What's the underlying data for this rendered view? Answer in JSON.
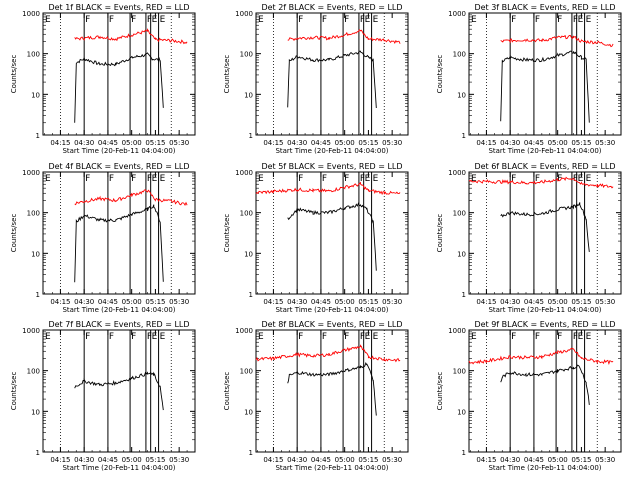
{
  "figure": {
    "ylabel": "Counts/sec",
    "xlabel": "Start Time (20-Feb-11 04:04:00)",
    "xticks": [
      "04:15",
      "04:30",
      "04:45",
      "05:00",
      "05:15",
      "05:30"
    ],
    "yticks": [
      "1",
      "10",
      "100",
      "1000"
    ],
    "colors": {
      "events": "#000000",
      "lld": "#ff0000",
      "axes": "#000000",
      "background": "#ffffff"
    }
  },
  "chart_data": [
    {
      "type": "line",
      "title": "Det 1f BLACK = Events, RED = LLD",
      "ylog": true,
      "ylim": [
        1,
        1000
      ],
      "markers": [
        "F",
        "F",
        "F",
        "F",
        "E",
        "E"
      ],
      "series": [
        {
          "name": "Events",
          "points": [
            [
              "04:24",
              2
            ],
            [
              "04:25",
              60
            ],
            [
              "04:30",
              75
            ],
            [
              "04:40",
              55
            ],
            [
              "04:50",
              55
            ],
            [
              "05:00",
              80
            ],
            [
              "05:10",
              95
            ],
            [
              "05:13",
              75
            ],
            [
              "05:18",
              70
            ],
            [
              "05:20",
              5
            ]
          ]
        },
        {
          "name": "LLD",
          "points": [
            [
              "04:24",
              230
            ],
            [
              "04:30",
              240
            ],
            [
              "04:40",
              260
            ],
            [
              "04:50",
              230
            ],
            [
              "05:00",
              290
            ],
            [
              "05:10",
              360
            ],
            [
              "05:15",
              220
            ],
            [
              "05:25",
              210
            ],
            [
              "05:35",
              190
            ]
          ]
        }
      ]
    },
    {
      "type": "line",
      "title": "Det 2f BLACK = Events, RED = LLD",
      "ylog": true,
      "ylim": [
        1,
        1000
      ],
      "markers": [
        "F",
        "F",
        "F",
        "F",
        "E",
        "E"
      ],
      "series": [
        {
          "name": "Events",
          "points": [
            [
              "04:24",
              5
            ],
            [
              "04:25",
              65
            ],
            [
              "04:30",
              85
            ],
            [
              "04:40",
              70
            ],
            [
              "04:50",
              70
            ],
            [
              "05:00",
              90
            ],
            [
              "05:10",
              110
            ],
            [
              "05:15",
              80
            ],
            [
              "05:18",
              70
            ],
            [
              "05:20",
              5
            ]
          ]
        },
        {
          "name": "LLD",
          "points": [
            [
              "04:24",
              220
            ],
            [
              "04:30",
              240
            ],
            [
              "04:40",
              250
            ],
            [
              "04:50",
              240
            ],
            [
              "05:00",
              290
            ],
            [
              "05:10",
              370
            ],
            [
              "05:15",
              230
            ],
            [
              "05:25",
              220
            ],
            [
              "05:35",
              190
            ]
          ]
        }
      ]
    },
    {
      "type": "line",
      "title": "Det 3f BLACK = Events, RED = LLD",
      "ylog": true,
      "ylim": [
        1,
        1000
      ],
      "markers": [
        "F",
        "F",
        "F",
        "F",
        "E",
        "E"
      ],
      "series": [
        {
          "name": "Events",
          "points": [
            [
              "04:24",
              2
            ],
            [
              "04:25",
              65
            ],
            [
              "04:30",
              80
            ],
            [
              "04:40",
              70
            ],
            [
              "04:50",
              70
            ],
            [
              "05:00",
              90
            ],
            [
              "05:10",
              110
            ],
            [
              "05:15",
              80
            ],
            [
              "05:18",
              70
            ],
            [
              "05:20",
              2
            ]
          ]
        },
        {
          "name": "LLD",
          "points": [
            [
              "04:24",
              200
            ],
            [
              "04:30",
              210
            ],
            [
              "04:40",
              220
            ],
            [
              "04:50",
              210
            ],
            [
              "05:00",
              250
            ],
            [
              "05:10",
              260
            ],
            [
              "05:15",
              200
            ],
            [
              "05:25",
              190
            ],
            [
              "05:35",
              160
            ]
          ]
        }
      ]
    },
    {
      "type": "line",
      "title": "Det 4f BLACK = Events, RED = LLD",
      "ylog": true,
      "ylim": [
        1,
        1000
      ],
      "markers": [
        "F",
        "F",
        "F",
        "F",
        "E",
        "E"
      ],
      "series": [
        {
          "name": "Events",
          "points": [
            [
              "04:24",
              2
            ],
            [
              "04:25",
              60
            ],
            [
              "04:30",
              85
            ],
            [
              "04:40",
              65
            ],
            [
              "04:50",
              65
            ],
            [
              "05:00",
              90
            ],
            [
              "05:10",
              120
            ],
            [
              "05:14",
              150
            ],
            [
              "05:18",
              60
            ],
            [
              "05:20",
              2
            ]
          ]
        },
        {
          "name": "LLD",
          "points": [
            [
              "04:24",
              170
            ],
            [
              "04:30",
              190
            ],
            [
              "04:40",
              220
            ],
            [
              "04:50",
              200
            ],
            [
              "05:00",
              270
            ],
            [
              "05:10",
              350
            ],
            [
              "05:15",
              210
            ],
            [
              "05:25",
              190
            ],
            [
              "05:35",
              160
            ]
          ]
        }
      ]
    },
    {
      "type": "line",
      "title": "Det 5f BLACK = Events, RED = LLD",
      "ylog": true,
      "ylim": [
        1,
        1000
      ],
      "markers": [
        "F",
        "F",
        "F",
        "F",
        "E",
        "E"
      ],
      "series": [
        {
          "name": "Events",
          "points": [
            [
              "04:24",
              70
            ],
            [
              "04:30",
              120
            ],
            [
              "04:40",
              100
            ],
            [
              "04:50",
              100
            ],
            [
              "05:00",
              130
            ],
            [
              "05:10",
              160
            ],
            [
              "05:14",
              120
            ],
            [
              "05:18",
              60
            ],
            [
              "05:20",
              4
            ]
          ]
        },
        {
          "name": "LLD",
          "points": [
            [
              "04:04",
              310
            ],
            [
              "04:15",
              330
            ],
            [
              "04:30",
              370
            ],
            [
              "04:40",
              350
            ],
            [
              "04:50",
              340
            ],
            [
              "05:00",
              420
            ],
            [
              "05:10",
              500
            ],
            [
              "05:15",
              350
            ],
            [
              "05:25",
              310
            ],
            [
              "05:35",
              290
            ]
          ]
        }
      ]
    },
    {
      "type": "line",
      "title": "Det 6f BLACK = Events, RED = LLD",
      "ylog": true,
      "ylim": [
        1,
        1000
      ],
      "markers": [
        "F",
        "F",
        "F",
        "F",
        "E",
        "E"
      ],
      "series": [
        {
          "name": "Events",
          "points": [
            [
              "04:24",
              80
            ],
            [
              "04:30",
              100
            ],
            [
              "04:40",
              90
            ],
            [
              "04:50",
              95
            ],
            [
              "05:00",
              120
            ],
            [
              "05:10",
              140
            ],
            [
              "05:14",
              170
            ],
            [
              "05:18",
              70
            ],
            [
              "05:20",
              10
            ]
          ]
        },
        {
          "name": "LLD",
          "points": [
            [
              "04:04",
              600
            ],
            [
              "04:15",
              580
            ],
            [
              "04:30",
              570
            ],
            [
              "04:40",
              540
            ],
            [
              "04:50",
              560
            ],
            [
              "05:00",
              650
            ],
            [
              "05:10",
              700
            ],
            [
              "05:15",
              500
            ],
            [
              "05:25",
              470
            ],
            [
              "05:35",
              430
            ]
          ]
        }
      ]
    },
    {
      "type": "line",
      "title": "Det 7f BLACK = Events, RED = LLD",
      "ylog": true,
      "ylim": [
        1,
        1000
      ],
      "markers": [
        "F",
        "F",
        "F",
        "F",
        "E",
        "E"
      ],
      "series": [
        {
          "name": "Events",
          "points": [
            [
              "04:24",
              40
            ],
            [
              "04:30",
              55
            ],
            [
              "04:40",
              45
            ],
            [
              "04:50",
              50
            ],
            [
              "05:00",
              65
            ],
            [
              "05:10",
              85
            ],
            [
              "05:14",
              80
            ],
            [
              "05:18",
              40
            ],
            [
              "05:20",
              10
            ]
          ]
        },
        {
          "name": "LLD",
          "points": []
        }
      ]
    },
    {
      "type": "line",
      "title": "Det 8f BLACK = Events, RED = LLD",
      "ylog": true,
      "ylim": [
        1,
        1000
      ],
      "markers": [
        "F",
        "F",
        "F",
        "F",
        "E",
        "E"
      ],
      "series": [
        {
          "name": "Events",
          "points": [
            [
              "04:24",
              50
            ],
            [
              "04:25",
              75
            ],
            [
              "04:30",
              90
            ],
            [
              "04:40",
              80
            ],
            [
              "04:50",
              80
            ],
            [
              "05:00",
              100
            ],
            [
              "05:10",
              120
            ],
            [
              "05:14",
              150
            ],
            [
              "05:18",
              60
            ],
            [
              "05:20",
              8
            ]
          ]
        },
        {
          "name": "LLD",
          "points": [
            [
              "04:04",
              190
            ],
            [
              "04:15",
              200
            ],
            [
              "04:30",
              250
            ],
            [
              "04:40",
              230
            ],
            [
              "04:50",
              250
            ],
            [
              "05:00",
              320
            ],
            [
              "05:10",
              390
            ],
            [
              "05:15",
              220
            ],
            [
              "05:25",
              190
            ],
            [
              "05:35",
              180
            ]
          ]
        }
      ]
    },
    {
      "type": "line",
      "title": "Det 9f BLACK = Events, RED = LLD",
      "ylog": true,
      "ylim": [
        1,
        1000
      ],
      "markers": [
        "F",
        "F",
        "F",
        "F",
        "E",
        "E"
      ],
      "series": [
        {
          "name": "Events",
          "points": [
            [
              "04:24",
              50
            ],
            [
              "04:25",
              70
            ],
            [
              "04:30",
              90
            ],
            [
              "04:40",
              80
            ],
            [
              "04:50",
              80
            ],
            [
              "05:00",
              100
            ],
            [
              "05:10",
              120
            ],
            [
              "05:14",
              130
            ],
            [
              "05:18",
              50
            ],
            [
              "05:20",
              15
            ]
          ]
        },
        {
          "name": "LLD",
          "points": [
            [
              "04:04",
              160
            ],
            [
              "04:15",
              170
            ],
            [
              "04:30",
              220
            ],
            [
              "04:40",
              210
            ],
            [
              "04:50",
              220
            ],
            [
              "05:00",
              280
            ],
            [
              "05:10",
              330
            ],
            [
              "05:15",
              200
            ],
            [
              "05:25",
              170
            ],
            [
              "05:35",
              160
            ]
          ]
        }
      ]
    }
  ]
}
